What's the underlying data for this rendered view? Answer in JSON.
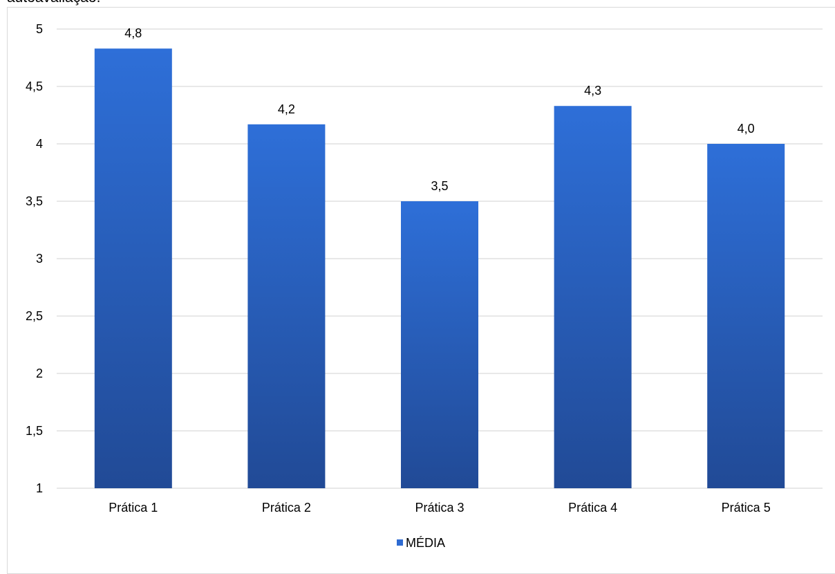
{
  "caption": "autoavaliação.",
  "chart_data": {
    "type": "bar",
    "categories": [
      "Prática 1",
      "Prática 2",
      "Prática 3",
      "Prática 4",
      "Prática 5"
    ],
    "series": [
      {
        "name": "MÉDIA",
        "values": [
          4.83,
          4.17,
          3.5,
          4.33,
          4.0
        ],
        "data_labels": [
          "4,8",
          "4,2",
          "3,5",
          "4,3",
          "4,0"
        ]
      }
    ],
    "yticks": [
      "1",
      "1,5",
      "2",
      "2,5",
      "3",
      "3,5",
      "4",
      "4,5",
      "5"
    ],
    "ylim": [
      1,
      5
    ],
    "grid": true,
    "legend_position": "bottom",
    "colors": {
      "bar_top": "#2e6fd8",
      "bar_bottom": "#214a96",
      "grid": "#d9d9d9",
      "legend": "#2e6bd2"
    }
  }
}
